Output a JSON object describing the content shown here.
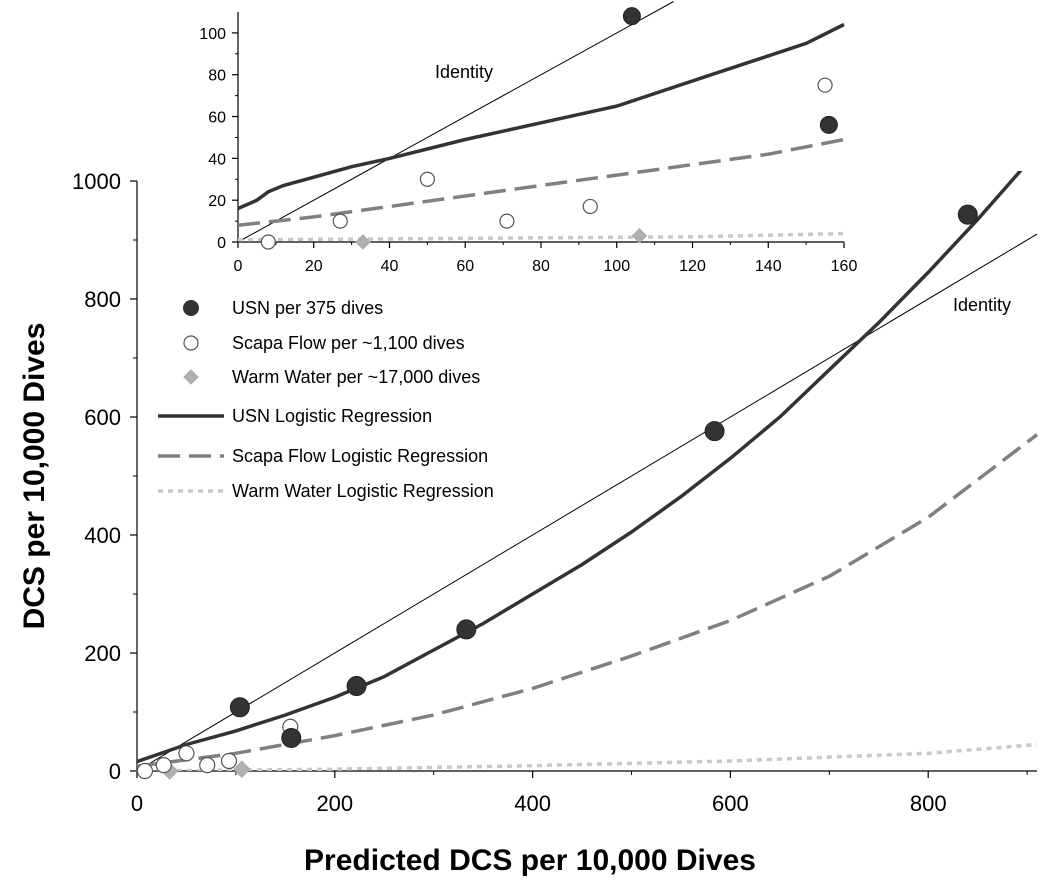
{
  "chart_data": [
    {
      "id": "main",
      "type": "scatter",
      "title": "",
      "xlabel": "Predicted DCS per 10,000 Dives",
      "ylabel": "DCS per 10,000 Dives",
      "xlim": [
        0,
        910
      ],
      "ylim": [
        0,
        1000
      ],
      "xticks": [
        "0",
        "200",
        "400",
        "600",
        "800"
      ],
      "yticks": [
        "0",
        "200",
        "400",
        "600",
        "800",
        "1000"
      ],
      "grid": false,
      "annotations": [
        {
          "text": "Identity"
        }
      ],
      "legend": {
        "position": "upper-left",
        "entries": [
          {
            "label": "USN per 375 dives",
            "marker": "filled-circle",
            "color": "#333333"
          },
          {
            "label": "Scapa Flow per ~1,100 dives",
            "marker": "open-circle",
            "color": "#555555"
          },
          {
            "label": "Warm Water per ~17,000 dives",
            "marker": "diamond",
            "color": "#b0b0b0"
          },
          {
            "label": "USN Logistic Regression",
            "line": "solid",
            "color": "#333333"
          },
          {
            "label": "Scapa Flow Logistic Regression",
            "line": "long-dash",
            "color": "#808080"
          },
          {
            "label": "Warm Water Logistic Regression",
            "line": "dotted",
            "color": "#c8c8c8"
          }
        ]
      },
      "points": {
        "usn": {
          "x": [
            104,
            156,
            222,
            333,
            584,
            840
          ],
          "y": [
            108,
            56,
            144,
            240,
            576,
            943
          ]
        },
        "scapa": {
          "x": [
            8,
            27,
            50,
            71,
            93,
            155
          ],
          "y": [
            0,
            10,
            30,
            10,
            17,
            75
          ]
        },
        "warm": {
          "x": [
            8,
            33,
            106
          ],
          "y": [
            0,
            0,
            3
          ]
        }
      },
      "curves": {
        "identity": {
          "x": [
            0,
            910
          ],
          "y": [
            0,
            910
          ]
        },
        "usn": {
          "x": [
            0,
            50,
            100,
            150,
            200,
            250,
            300,
            350,
            400,
            450,
            500,
            550,
            600,
            650,
            700,
            750,
            800,
            850,
            900
          ],
          "y": [
            16,
            45,
            68,
            95,
            125,
            160,
            205,
            250,
            300,
            350,
            405,
            465,
            530,
            600,
            680,
            760,
            845,
            935,
            1030
          ]
        },
        "scapa": {
          "x": [
            0,
            100,
            200,
            300,
            400,
            500,
            600,
            700,
            800,
            910
          ],
          "y": [
            8,
            30,
            60,
            95,
            140,
            195,
            255,
            330,
            430,
            570
          ]
        },
        "warm": {
          "x": [
            0,
            200,
            400,
            600,
            800,
            910
          ],
          "y": [
            0,
            3,
            9,
            17,
            30,
            45
          ]
        }
      }
    },
    {
      "id": "inset",
      "type": "scatter",
      "xlim": [
        0,
        160
      ],
      "ylim": [
        0,
        110
      ],
      "xticks": [
        "0",
        "20",
        "40",
        "60",
        "80",
        "100",
        "120",
        "140",
        "160"
      ],
      "yticks": [
        "0",
        "20",
        "40",
        "60",
        "80",
        "100"
      ],
      "grid": false,
      "annotations": [
        {
          "text": "Identity"
        }
      ],
      "points": {
        "usn": {
          "x": [
            104,
            156
          ],
          "y": [
            108,
            56
          ]
        },
        "scapa": {
          "x": [
            8,
            27,
            50,
            71,
            93,
            155
          ],
          "y": [
            0,
            10,
            30,
            10,
            17,
            75
          ]
        },
        "warm": {
          "x": [
            8,
            33,
            106
          ],
          "y": [
            0,
            0,
            3
          ]
        }
      },
      "curves": {
        "identity": {
          "x": [
            0,
            115
          ],
          "y": [
            0,
            115
          ]
        },
        "usn": {
          "x": [
            0,
            5,
            8,
            12,
            20,
            30,
            40,
            60,
            80,
            100,
            125,
            150,
            160
          ],
          "y": [
            16,
            20,
            24,
            27,
            31,
            36,
            40,
            49,
            57,
            65,
            80,
            95,
            104
          ]
        },
        "scapa": {
          "x": [
            0,
            20,
            40,
            60,
            80,
            100,
            120,
            140,
            160
          ],
          "y": [
            8,
            12,
            17,
            22,
            27,
            32,
            37,
            42,
            49
          ]
        },
        "warm": {
          "x": [
            0,
            40,
            80,
            120,
            160
          ],
          "y": [
            1,
            1.5,
            2,
            2.5,
            4
          ]
        }
      }
    }
  ]
}
